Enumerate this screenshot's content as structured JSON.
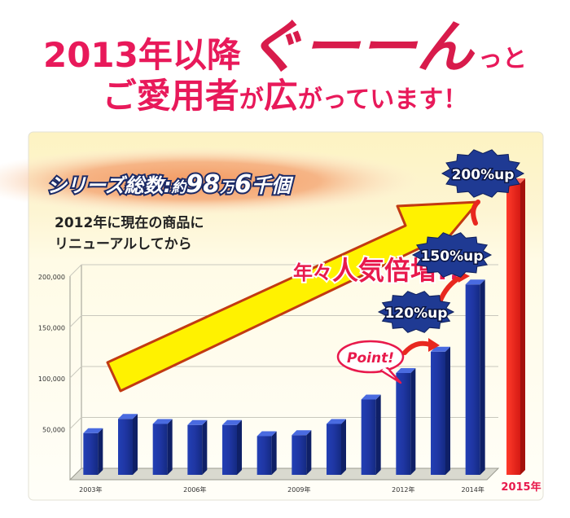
{
  "headline": {
    "line1_a": "2013年以降",
    "line1_b": "ぐーーん",
    "line1_c": "っと",
    "line2_a": "ご愛用者",
    "line2_b": "が",
    "line2_c": "広",
    "line2_d": "がっています！"
  },
  "banner": {
    "a": "シリーズ総数",
    "b": ":",
    "c": "約",
    "d": "98",
    "e": "万",
    "f": "6",
    "g": "千個"
  },
  "renewal_note": {
    "line1": "2012年に現在の商品に",
    "line2": "リニューアルしてから"
  },
  "popularity": {
    "a": "年々",
    "b": "人気倍増!!"
  },
  "point_label": "Point!",
  "badges": [
    "120%up",
    "150%up",
    "200%up"
  ],
  "colors": {
    "headline": "#e8195a",
    "bar": "#1a3aa8",
    "bar_2015": "#e8281f",
    "arrow": "#fff200",
    "badge": "#1f3a93"
  },
  "chart_data": {
    "type": "bar",
    "categories": [
      "2003",
      "2004",
      "2005",
      "2006",
      "2007",
      "2008",
      "2009",
      "2010",
      "2011",
      "2012",
      "2013",
      "2014"
    ],
    "values": [
      41000,
      55000,
      50000,
      49000,
      49000,
      38000,
      39000,
      50000,
      74000,
      100000,
      121000,
      187000
    ],
    "ylim": [
      0,
      200000
    ],
    "yticks": [
      "50,000",
      "100,000",
      "150,000",
      "200,000"
    ],
    "xtick_labels": [
      "2003年",
      "2006年",
      "2009年",
      "2012年",
      "2014年"
    ],
    "highlight": {
      "label": "2015年"
    },
    "grid": true
  }
}
